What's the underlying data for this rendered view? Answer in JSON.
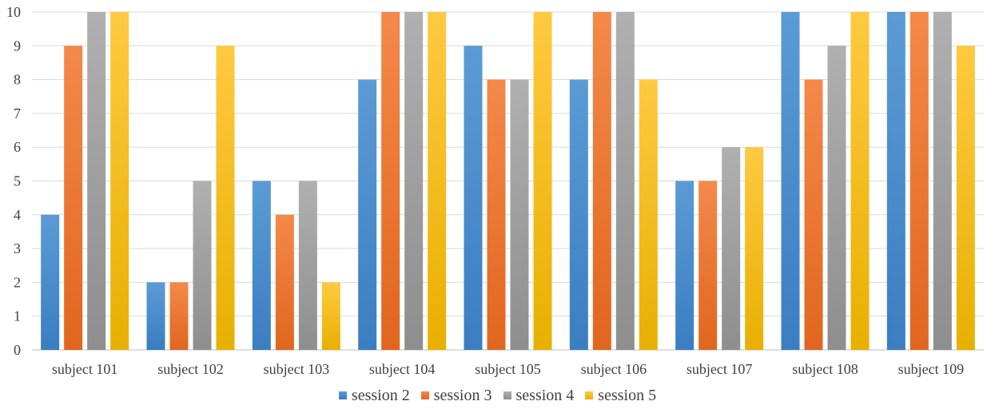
{
  "chart_data": {
    "type": "bar",
    "title": "",
    "xlabel": "",
    "ylabel": "",
    "categories": [
      "subject 101",
      "subject 102",
      "subject 103",
      "subject 104",
      "subject 105",
      "subject 106",
      "subject 107",
      "subject 108",
      "subject 109"
    ],
    "series": [
      {
        "name": "session 2",
        "color": "#5B9BD5",
        "color_dark": "#3A7EC2",
        "values": [
          4,
          2,
          5,
          8,
          9,
          8,
          5,
          10,
          10
        ]
      },
      {
        "name": "session 3",
        "color": "#F4894A",
        "color_dark": "#E0661E",
        "values": [
          9,
          2,
          4,
          10,
          8,
          10,
          5,
          8,
          10
        ]
      },
      {
        "name": "session 4",
        "color": "#B0B0B0",
        "color_dark": "#8E8E8E",
        "values": [
          10,
          5,
          5,
          10,
          8,
          10,
          6,
          9,
          10
        ]
      },
      {
        "name": "session 5",
        "color": "#FFC941",
        "color_dark": "#E8B000",
        "values": [
          10,
          9,
          2,
          10,
          10,
          8,
          6,
          10,
          9
        ]
      }
    ],
    "ylim": [
      0,
      10
    ],
    "yticks": [
      0,
      1,
      2,
      3,
      4,
      5,
      6,
      7,
      8,
      9,
      10
    ],
    "grid": true,
    "legend_position": "bottom"
  }
}
